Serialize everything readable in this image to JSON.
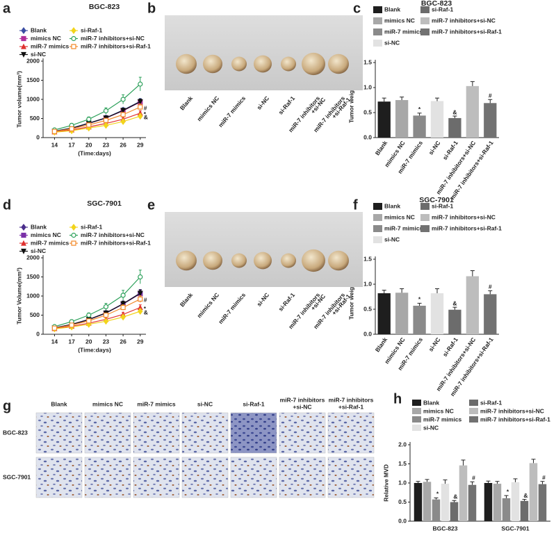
{
  "chart_data": [
    {
      "type": "line",
      "label": "a",
      "title": "BGC-823",
      "y_label": "Tumor volume(mm³)",
      "x_label": "(Time:days)",
      "x": [
        14,
        17,
        20,
        23,
        26,
        29
      ],
      "xlim": [
        12,
        30
      ],
      "xticks": [
        14,
        17,
        20,
        23,
        26,
        29
      ],
      "ylim": [
        0,
        2000
      ],
      "yticks": [
        0,
        500,
        1000,
        1500,
        2000
      ],
      "series": [
        {
          "name": "Blank",
          "color": "#3b4fa3",
          "marker": "diamond",
          "values": [
            170,
            250,
            380,
            520,
            720,
            950
          ],
          "errors": [
            30,
            35,
            40,
            50,
            60,
            70
          ]
        },
        {
          "name": "mimics NC",
          "color": "#b0309a",
          "marker": "square",
          "values": [
            160,
            240,
            370,
            510,
            700,
            930
          ],
          "errors": [
            30,
            35,
            40,
            50,
            60,
            70
          ]
        },
        {
          "name": "miR-7 mimics",
          "color": "#e0312f",
          "marker": "triangle",
          "values": [
            150,
            200,
            280,
            370,
            480,
            640
          ],
          "errors": [
            25,
            30,
            35,
            40,
            50,
            60
          ],
          "annotation": "*"
        },
        {
          "name": "si-NC",
          "color": "#111111",
          "marker": "triangle-down",
          "values": [
            165,
            245,
            375,
            515,
            710,
            940
          ],
          "errors": [
            30,
            35,
            40,
            50,
            60,
            70
          ]
        },
        {
          "name": "si-Raf-1",
          "color": "#f2d41c",
          "marker": "diamond",
          "values": [
            140,
            180,
            250,
            320,
            420,
            560
          ],
          "errors": [
            25,
            30,
            30,
            40,
            50,
            60
          ],
          "annotation": "&"
        },
        {
          "name": "miR-7 inhibitors+si-NC",
          "color": "#2ca05a",
          "marker": "circle",
          "values": [
            200,
            320,
            480,
            700,
            1000,
            1400
          ],
          "errors": [
            40,
            50,
            60,
            80,
            120,
            180
          ]
        },
        {
          "name": "miR-7 inhibitors+si-Raf-1",
          "color": "#f28a2a",
          "marker": "square",
          "values": [
            160,
            230,
            330,
            450,
            600,
            800
          ],
          "errors": [
            30,
            35,
            40,
            50,
            60,
            80
          ],
          "annotation": "#"
        }
      ]
    },
    {
      "type": "bar",
      "label": "c",
      "title": "BGC-823",
      "y_label": "Tumor weight(g)",
      "categories": [
        "Blank",
        "mimics NC",
        "miR-7 mimics",
        "si-NC",
        "si-Raf-1",
        "miR-7 inhibitors+si-NC",
        "miR-7 inhibitors+si-Raf-1"
      ],
      "colors": [
        "#1e1e1e",
        "#a8a8a8",
        "#8a8a8a",
        "#e2e2e2",
        "#6c6c6c",
        "#bdbdbd",
        "#727272"
      ],
      "values": [
        0.72,
        0.75,
        0.44,
        0.73,
        0.39,
        1.03,
        0.69
      ],
      "errors": [
        0.07,
        0.06,
        0.05,
        0.06,
        0.04,
        0.09,
        0.07
      ],
      "value_annotations": [
        null,
        null,
        "*",
        null,
        "&",
        null,
        "#"
      ],
      "ylim": [
        0,
        1.5
      ],
      "yticks": [
        {
          "value": 0,
          "label": "0.0"
        },
        0.5,
        {
          "value": 1,
          "label": "1.0"
        },
        1.5
      ]
    },
    {
      "type": "line",
      "label": "d",
      "title": "SGC-7901",
      "y_label": "Tumor Volume(mm³)",
      "x_label": "(Time:days)",
      "x": [
        14,
        17,
        20,
        23,
        26,
        29
      ],
      "xlim": [
        12,
        30
      ],
      "xticks": [
        14,
        17,
        20,
        23,
        26,
        29
      ],
      "ylim": [
        0,
        2000
      ],
      "yticks": [
        0,
        500,
        1000,
        1500,
        2000
      ],
      "series": [
        {
          "name": "Blank",
          "color": "#4b2e8c",
          "marker": "diamond",
          "values": [
            170,
            260,
            390,
            560,
            800,
            1080
          ],
          "errors": [
            30,
            35,
            45,
            55,
            70,
            90
          ]
        },
        {
          "name": "mimics NC",
          "color": "#7a30a8",
          "marker": "square",
          "values": [
            165,
            250,
            380,
            550,
            790,
            1060
          ],
          "errors": [
            30,
            35,
            45,
            55,
            70,
            90
          ]
        },
        {
          "name": "miR-7 mimics",
          "color": "#e0312f",
          "marker": "triangle",
          "values": [
            150,
            210,
            290,
            390,
            520,
            700
          ],
          "errors": [
            25,
            30,
            35,
            45,
            55,
            70
          ],
          "annotation": "*"
        },
        {
          "name": "si-NC",
          "color": "#111111",
          "marker": "triangle-down",
          "values": [
            165,
            255,
            385,
            555,
            795,
            1070
          ],
          "errors": [
            30,
            35,
            45,
            55,
            70,
            90
          ]
        },
        {
          "name": "si-Raf-1",
          "color": "#f2d41c",
          "marker": "diamond",
          "values": [
            140,
            190,
            260,
            340,
            450,
            600
          ],
          "errors": [
            25,
            30,
            30,
            40,
            50,
            60
          ],
          "annotation": "&"
        },
        {
          "name": "miR-7 inhibitors+si-NC",
          "color": "#2ca05a",
          "marker": "circle",
          "values": [
            200,
            330,
            500,
            720,
            1020,
            1500
          ],
          "errors": [
            40,
            50,
            60,
            90,
            130,
            180
          ]
        },
        {
          "name": "miR-7 inhibitors+si-Raf-1",
          "color": "#f28a2a",
          "marker": "square",
          "values": [
            160,
            240,
            350,
            500,
            700,
            920
          ],
          "errors": [
            30,
            35,
            40,
            55,
            70,
            90
          ],
          "annotation": "#"
        }
      ]
    },
    {
      "type": "bar",
      "label": "f",
      "title": "SGC-7901",
      "y_label": "Tumor weight(g)",
      "categories": [
        "Blank",
        "mimics NC",
        "miR-7 mimics",
        "si-NC",
        "si-Raf-1",
        "miR-7 inhibitors+si-NC",
        "miR-7 inhibitors+si-Raf-1"
      ],
      "colors": [
        "#1e1e1e",
        "#a8a8a8",
        "#8a8a8a",
        "#e2e2e2",
        "#6c6c6c",
        "#bdbdbd",
        "#727272"
      ],
      "values": [
        0.82,
        0.83,
        0.57,
        0.82,
        0.49,
        1.16,
        0.8
      ],
      "errors": [
        0.06,
        0.08,
        0.05,
        0.09,
        0.05,
        0.11,
        0.07
      ],
      "value_annotations": [
        null,
        null,
        "*",
        null,
        "&",
        null,
        "#"
      ],
      "ylim": [
        0,
        1.5
      ],
      "yticks": [
        {
          "value": 0,
          "label": "0.0"
        },
        0.5,
        {
          "value": 1,
          "label": "1.0"
        },
        1.5
      ]
    },
    {
      "type": "bar",
      "label": "h",
      "y_label": "Relative MVD",
      "categories": [
        "BGC-823",
        "SGC-7901"
      ],
      "ylim": [
        0,
        2
      ],
      "yticks": [
        {
          "value": 0,
          "label": "0.0"
        },
        0.5,
        {
          "value": 1,
          "label": "1.0"
        },
        1.5,
        {
          "value": 2,
          "label": "2.0"
        }
      ],
      "series": [
        {
          "name": "Blank",
          "color": "#1e1e1e",
          "values": [
            1.0,
            1.0
          ],
          "errors": [
            0.04,
            0.05
          ]
        },
        {
          "name": "mimics NC",
          "color": "#a8a8a8",
          "values": [
            1.03,
            0.98
          ],
          "errors": [
            0.06,
            0.06
          ]
        },
        {
          "name": "miR-7 mimics",
          "color": "#8a8a8a",
          "values": [
            0.57,
            0.6
          ],
          "errors": [
            0.04,
            0.07
          ],
          "annotation": "*"
        },
        {
          "name": "si-NC",
          "color": "#e2e2e2",
          "values": [
            0.98,
            1.02
          ],
          "errors": [
            0.1,
            0.09
          ]
        },
        {
          "name": "si-Raf-1",
          "color": "#6c6c6c",
          "values": [
            0.5,
            0.53
          ],
          "errors": [
            0.04,
            0.04
          ],
          "annotation": "&"
        },
        {
          "name": "miR-7 inhibitors+si-NC",
          "color": "#bdbdbd",
          "values": [
            1.46,
            1.52
          ],
          "errors": [
            0.14,
            0.1
          ]
        },
        {
          "name": "miR-7 inhibitors+si-Raf-1",
          "color": "#727272",
          "values": [
            0.95,
            0.97
          ],
          "errors": [
            0.08,
            0.07
          ],
          "annotation": "#"
        }
      ]
    }
  ],
  "photo_panels": [
    {
      "label": "b",
      "captions": [
        [
          "Blank"
        ],
        [
          "mimics NC"
        ],
        [
          "miR-7 mimics"
        ],
        [
          "si-NC"
        ],
        [
          "si-Raf-1"
        ],
        [
          "miR-7 inhibitors",
          "+si-NC"
        ],
        [
          "miR-7 inhibitors",
          "+si-Raf-1"
        ]
      ]
    },
    {
      "label": "e",
      "captions": [
        [
          "Blank"
        ],
        [
          "mimics NC"
        ],
        [
          "miR-7 mimics"
        ],
        [
          "si-NC"
        ],
        [
          "si-Raf-1"
        ],
        [
          "miR-7 inhibitors",
          "+si-NC"
        ],
        [
          "miR-7 inhibitors",
          "+si-Raf-1"
        ]
      ]
    },
    {
      "label": "g",
      "columns": [
        [
          "Blank"
        ],
        [
          "mimics NC"
        ],
        [
          "miR-7 mimics"
        ],
        [
          "si-NC"
        ],
        [
          "si-Raf-1"
        ],
        [
          "miR-7 inhibitors",
          "+si-NC"
        ],
        [
          "miR-7 inhibitors",
          "+si-Raf-1"
        ]
      ],
      "rows": [
        "BGC-823",
        "SGC-7901"
      ]
    }
  ]
}
